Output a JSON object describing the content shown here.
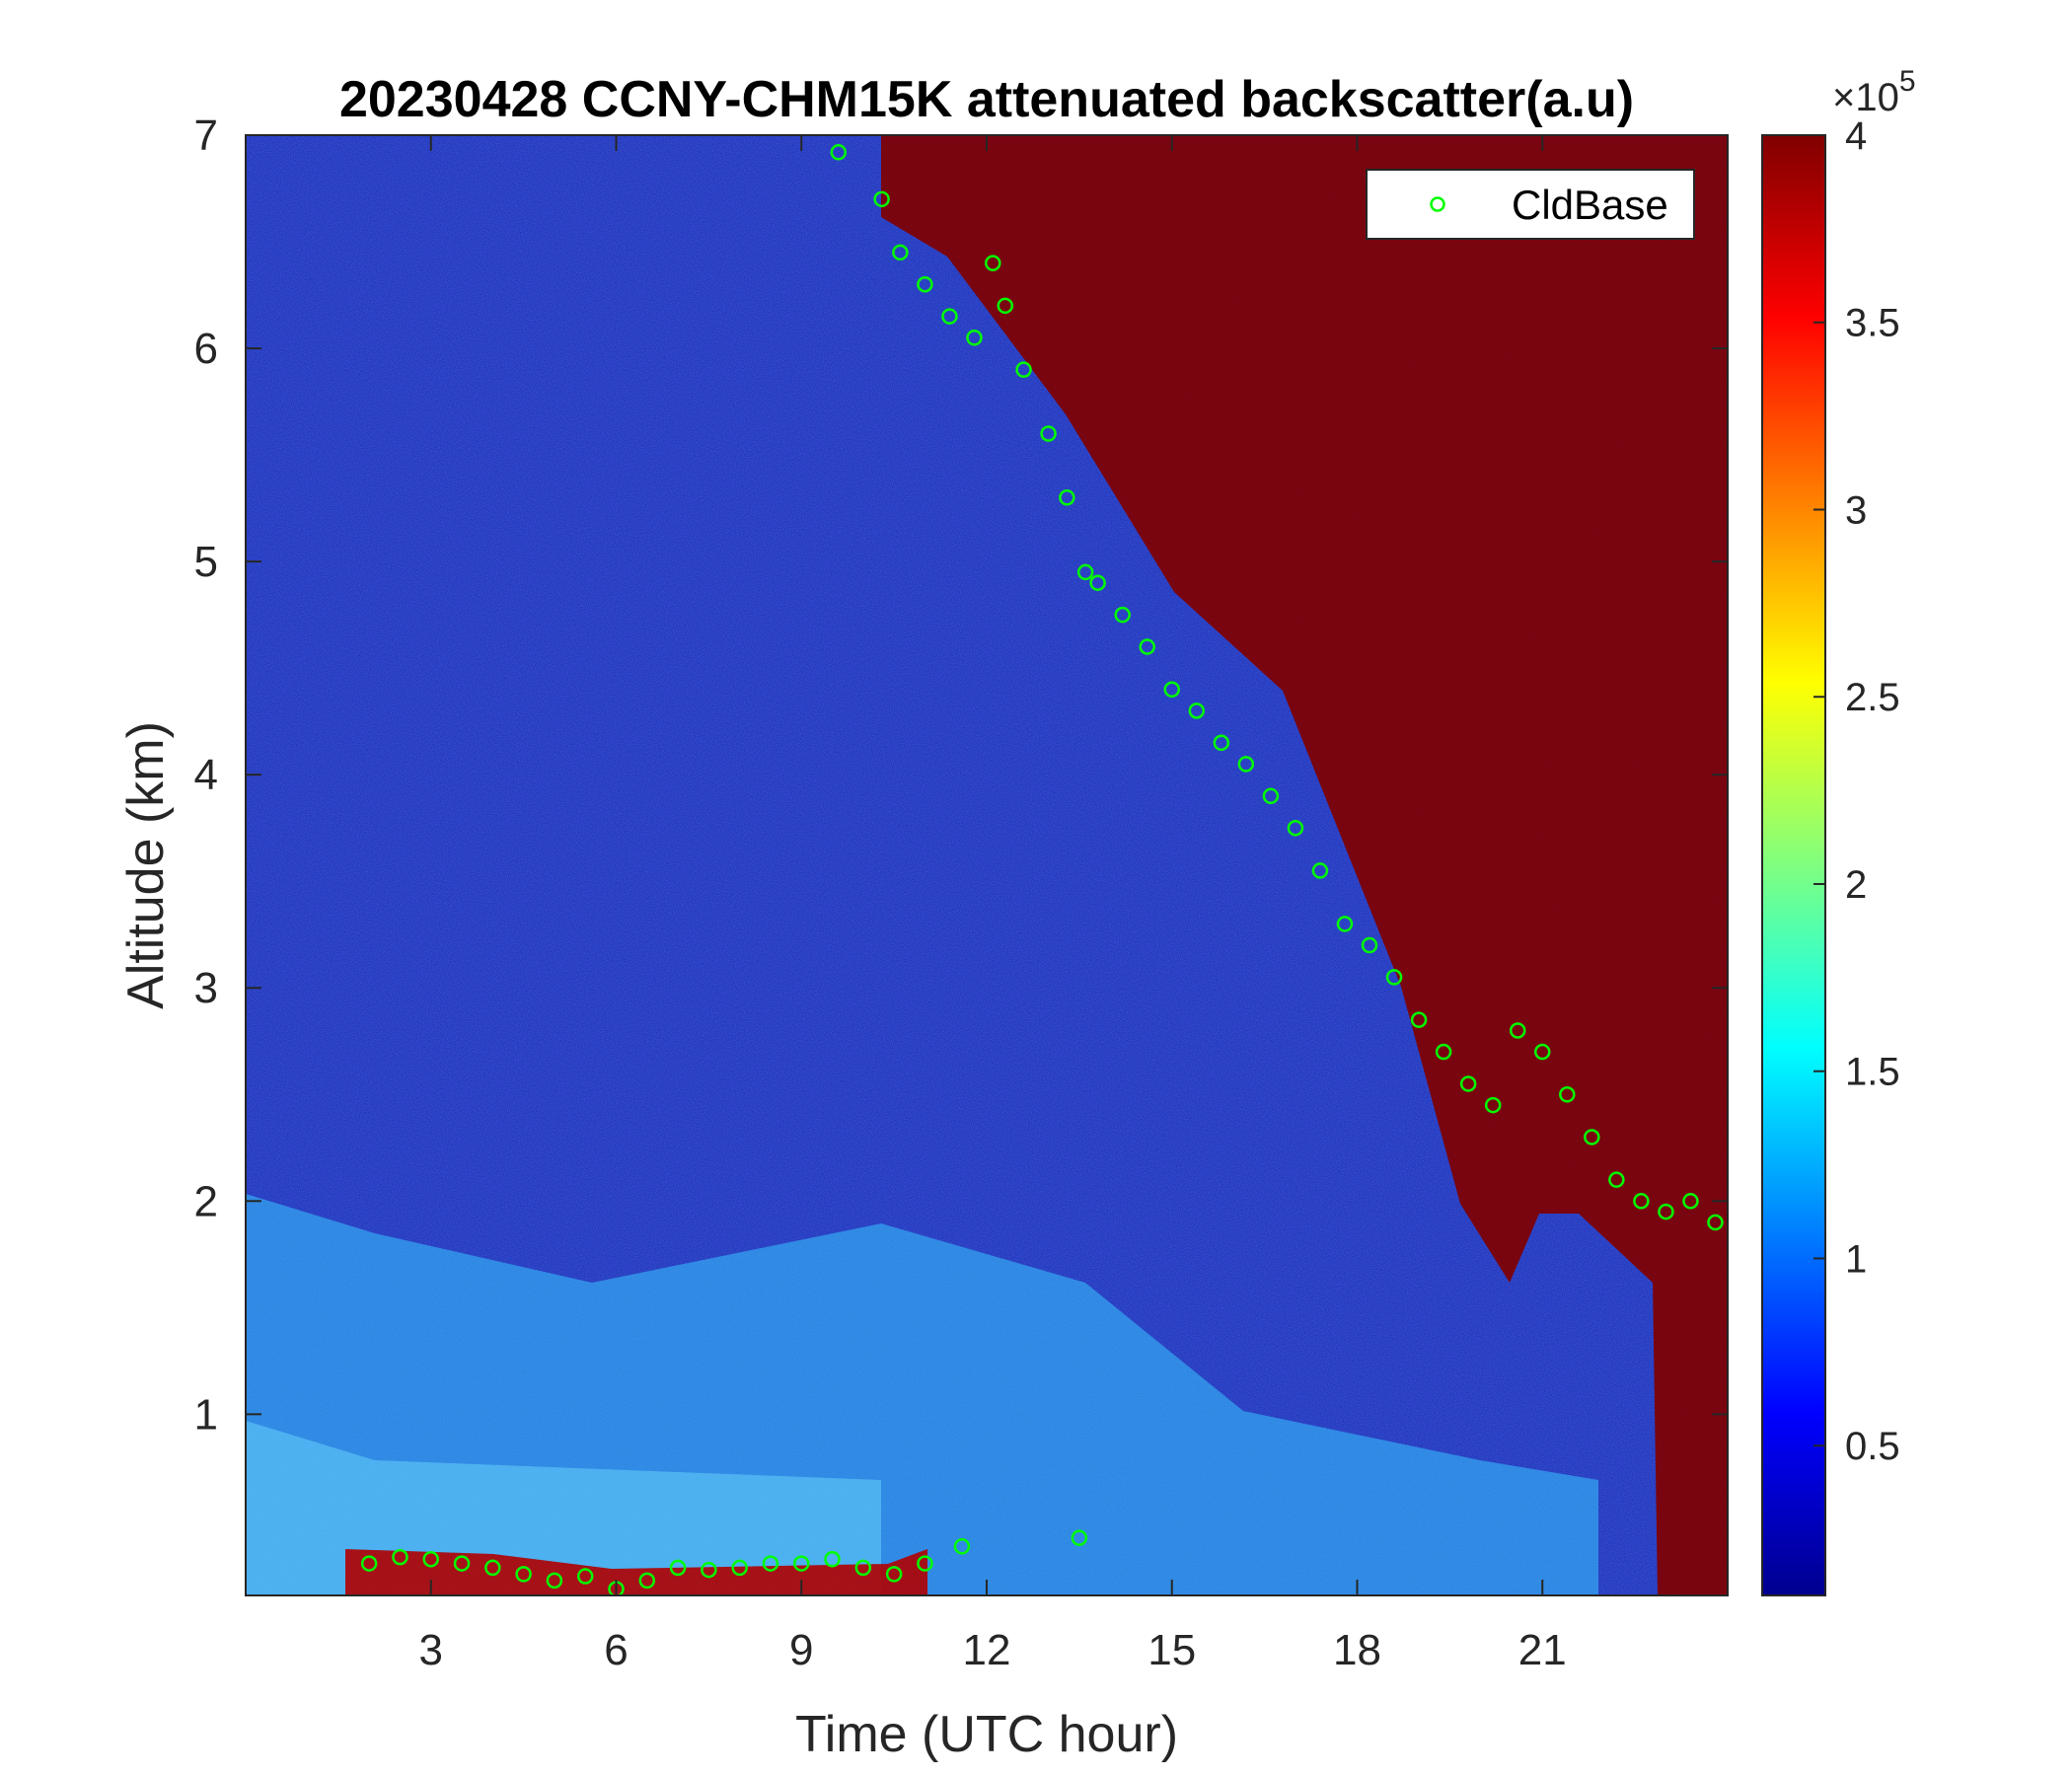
{
  "chart_data": {
    "type": "heatmap",
    "title": "20230428 CCNY-CHM15K attenuated backscatter(a.u)",
    "xlabel": "Time (UTC hour)",
    "ylabel": "Altitude (km)",
    "xlim": [
      0,
      24
    ],
    "ylim": [
      0.15,
      7
    ],
    "xticks": [
      3,
      6,
      9,
      12,
      15,
      18,
      21
    ],
    "xtick_labels": [
      "3",
      "6",
      "9",
      "12",
      "15",
      "18",
      "21"
    ],
    "yticks": [
      1,
      2,
      3,
      4,
      5,
      6,
      7
    ],
    "ytick_labels": [
      "1",
      "2",
      "3",
      "4",
      "5",
      "6",
      "7"
    ],
    "colormap": "jet",
    "colorbar": {
      "range": [
        0.1,
        4.0
      ],
      "ticks": [
        0.5,
        1,
        1.5,
        2,
        2.5,
        3,
        3.5,
        4
      ],
      "tick_labels": [
        "0.5",
        "1",
        "1.5",
        "2",
        "2.5",
        "3",
        "3.5",
        "4"
      ],
      "multiplier_base": "×10",
      "multiplier_exponent": "5"
    },
    "legend": {
      "position": "top-right",
      "entries": [
        "CldBase"
      ]
    },
    "series": [
      {
        "name": "CldBase",
        "marker": "circle",
        "color": "#00ff00",
        "x": [
          2.0,
          2.5,
          3.0,
          3.5,
          4.0,
          4.5,
          5.0,
          5.5,
          6.0,
          6.5,
          7.0,
          7.5,
          8.0,
          8.5,
          9.0,
          9.5,
          10.0,
          10.5,
          11.0,
          9.6,
          10.3,
          10.6,
          11.0,
          11.4,
          11.8,
          12.1,
          12.3,
          12.6,
          13.0,
          13.3,
          13.6,
          13.8,
          14.2,
          14.6,
          15.0,
          15.4,
          15.8,
          16.2,
          16.6,
          17.0,
          17.4,
          17.8,
          18.2,
          18.6,
          19.0,
          19.4,
          19.8,
          20.2,
          20.6,
          21.0,
          21.4,
          21.8,
          22.2,
          22.6,
          23.0,
          23.4,
          23.8,
          13.5,
          11.6
        ],
        "y": [
          0.3,
          0.33,
          0.32,
          0.3,
          0.28,
          0.25,
          0.22,
          0.24,
          0.18,
          0.22,
          0.28,
          0.27,
          0.28,
          0.3,
          0.3,
          0.32,
          0.28,
          0.25,
          0.3,
          6.92,
          6.7,
          6.45,
          6.3,
          6.15,
          6.05,
          6.4,
          6.2,
          5.9,
          5.6,
          5.3,
          4.95,
          4.9,
          4.75,
          4.6,
          4.4,
          4.3,
          4.15,
          4.05,
          3.9,
          3.75,
          3.55,
          3.3,
          3.2,
          3.05,
          2.85,
          2.7,
          2.55,
          2.45,
          2.8,
          2.7,
          2.5,
          2.3,
          2.1,
          2.0,
          1.95,
          2.0,
          1.9,
          0.42,
          0.38
        ]
      }
    ]
  }
}
